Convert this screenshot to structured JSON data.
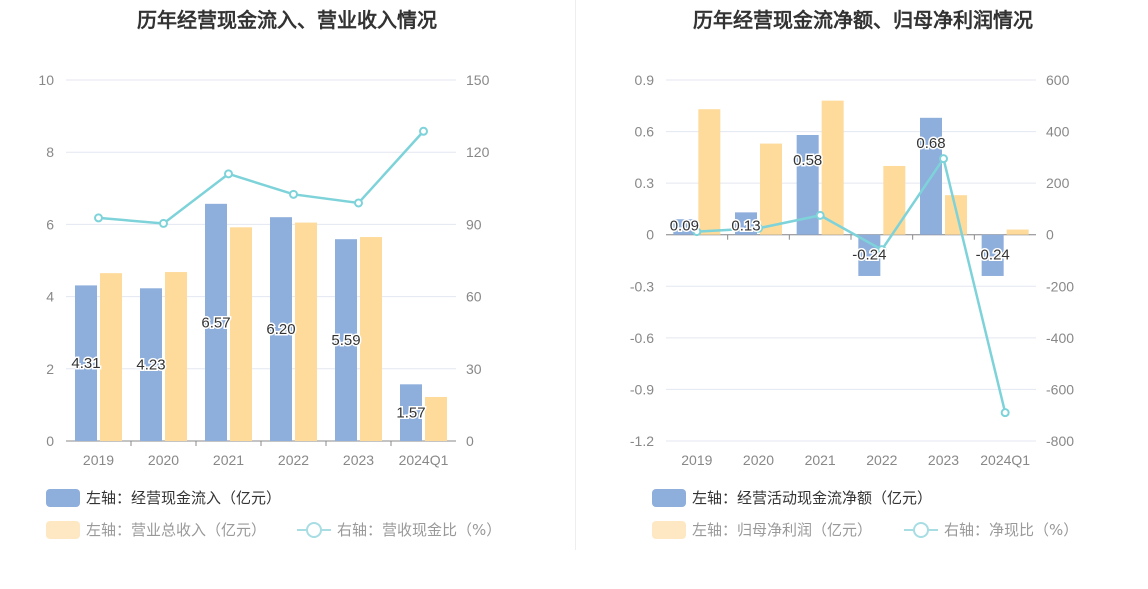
{
  "colors": {
    "bar1": "#8eaedc",
    "bar2": "#fedb9b",
    "line": "#7dd3d9",
    "grid": "#e3e7f1",
    "axis": "#888888"
  },
  "chart_data": [
    {
      "type": "bar",
      "title": "历年经营现金流入、营业收入情况",
      "categories": [
        "2019",
        "2020",
        "2021",
        "2022",
        "2023",
        "2024Q1"
      ],
      "left_axis": {
        "ylim": [
          0,
          10
        ],
        "ticks": [
          "0",
          "2",
          "4",
          "6",
          "8",
          "10"
        ]
      },
      "right_axis": {
        "ylim": [
          0,
          150
        ],
        "ticks": [
          "0",
          "30",
          "60",
          "90",
          "120",
          "150"
        ]
      },
      "series": [
        {
          "name": "左轴：经营现金流入（亿元）",
          "axis": "left",
          "kind": "bar",
          "values": [
            4.31,
            4.23,
            6.57,
            6.2,
            5.59,
            1.57
          ],
          "labels": [
            "4.31",
            "4.23",
            "6.57",
            "6.20",
            "5.59",
            "1.57"
          ]
        },
        {
          "name": "左轴：营业总收入（亿元）",
          "axis": "left",
          "kind": "bar",
          "values": [
            4.65,
            4.68,
            5.92,
            6.05,
            5.65,
            1.22
          ]
        },
        {
          "name": "右轴：营收现金比（%）",
          "axis": "right",
          "kind": "line",
          "values": [
            92.7,
            90.4,
            111.0,
            102.5,
            98.9,
            128.7
          ]
        }
      ]
    },
    {
      "type": "bar",
      "title": "历年经营现金流净额、归母净利润情况",
      "categories": [
        "2019",
        "2020",
        "2021",
        "2022",
        "2023",
        "2024Q1"
      ],
      "left_axis": {
        "ylim": [
          -1.2,
          0.9
        ],
        "ticks": [
          "-1.2",
          "-0.9",
          "-0.6",
          "-0.3",
          "0",
          "0.3",
          "0.6",
          "0.9"
        ]
      },
      "right_axis": {
        "ylim": [
          -800,
          600
        ],
        "ticks": [
          "-800",
          "-600",
          "-400",
          "-200",
          "0",
          "200",
          "400",
          "600"
        ]
      },
      "series": [
        {
          "name": "左轴：经营活动现金流净额（亿元）",
          "axis": "left",
          "kind": "bar",
          "values": [
            0.09,
            0.13,
            0.58,
            -0.24,
            0.68,
            -0.24
          ],
          "labels": [
            "0.09",
            "0.13",
            "0.58",
            "-0.24",
            "0.68",
            "-0.24"
          ]
        },
        {
          "name": "左轴：归母净利润（亿元）",
          "axis": "left",
          "kind": "bar",
          "values": [
            0.73,
            0.53,
            0.78,
            0.4,
            0.23,
            0.03
          ]
        },
        {
          "name": "右轴：净现比（%）",
          "axis": "right",
          "kind": "line",
          "values": [
            12,
            25,
            75,
            -58,
            295,
            -690
          ]
        }
      ]
    }
  ]
}
